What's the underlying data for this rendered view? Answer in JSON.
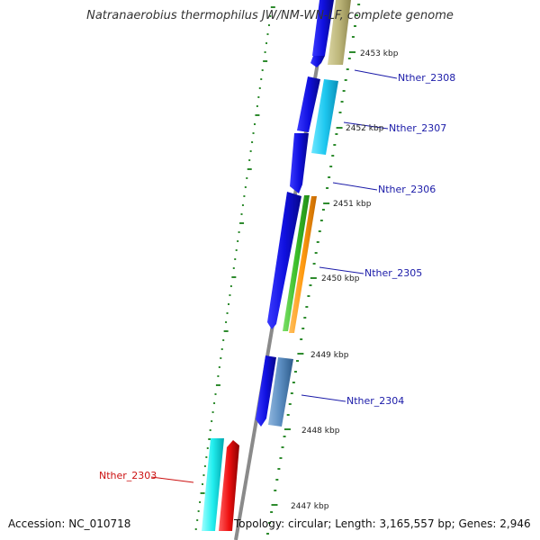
{
  "title": "Natranaerobius thermophilus JW/NM-WN-LF, complete genome",
  "footer": {
    "accession": "Accession: NC_010718",
    "summary": "Topology: circular; Length: 3,165,557 bp; Genes: 2,946"
  },
  "colors": {
    "backbone": "#8a8a8a",
    "tick": "#2e8b2e",
    "cds": "#1010e0",
    "label_blue": "#1a1aa8",
    "label_red": "#cc1111"
  },
  "kbp_labels": [
    "2453 kbp",
    "2452 kbp",
    "2451 kbp",
    "2450 kbp",
    "2449 kbp",
    "2448 kbp",
    "2447 kbp"
  ],
  "gene_labels": [
    {
      "text": "Nther_2308",
      "color": "blue"
    },
    {
      "text": "Nther_2307",
      "color": "blue"
    },
    {
      "text": "Nther_2306",
      "color": "blue"
    },
    {
      "text": "Nther_2305",
      "color": "blue"
    },
    {
      "text": "Nther_2304",
      "color": "blue"
    },
    {
      "text": "Nther_2303",
      "color": "red"
    }
  ]
}
